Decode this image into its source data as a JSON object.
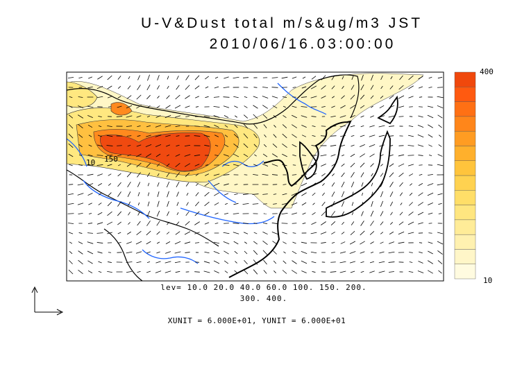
{
  "title": {
    "line1": "U-V&Dust total m/s&ug/m3 JST",
    "line2": "2010/06/16.03:00:00"
  },
  "contour_levels": {
    "line1": "lev= 10.0 20.0 40.0 60.0 100. 150. 200.",
    "line2": "300. 400."
  },
  "vector_units": "XUNIT = 6.000E+01, YUNIT = 6.000E+01",
  "colorbar": {
    "max_label": "400",
    "min_label": "10",
    "colors": [
      "#fffbe0",
      "#fff6c8",
      "#fff1b0",
      "#ffec98",
      "#ffe680",
      "#ffde68",
      "#ffd250",
      "#ffc43c",
      "#ffb02c",
      "#ff9c22",
      "#ff861a",
      "#ff7014",
      "#ff5a10",
      "#f0480c"
    ]
  },
  "contour_labels": [
    "10",
    "150"
  ],
  "colors": {
    "river": "#1e64ff",
    "coast": "#000000",
    "dust_high": "#f04a10"
  }
}
